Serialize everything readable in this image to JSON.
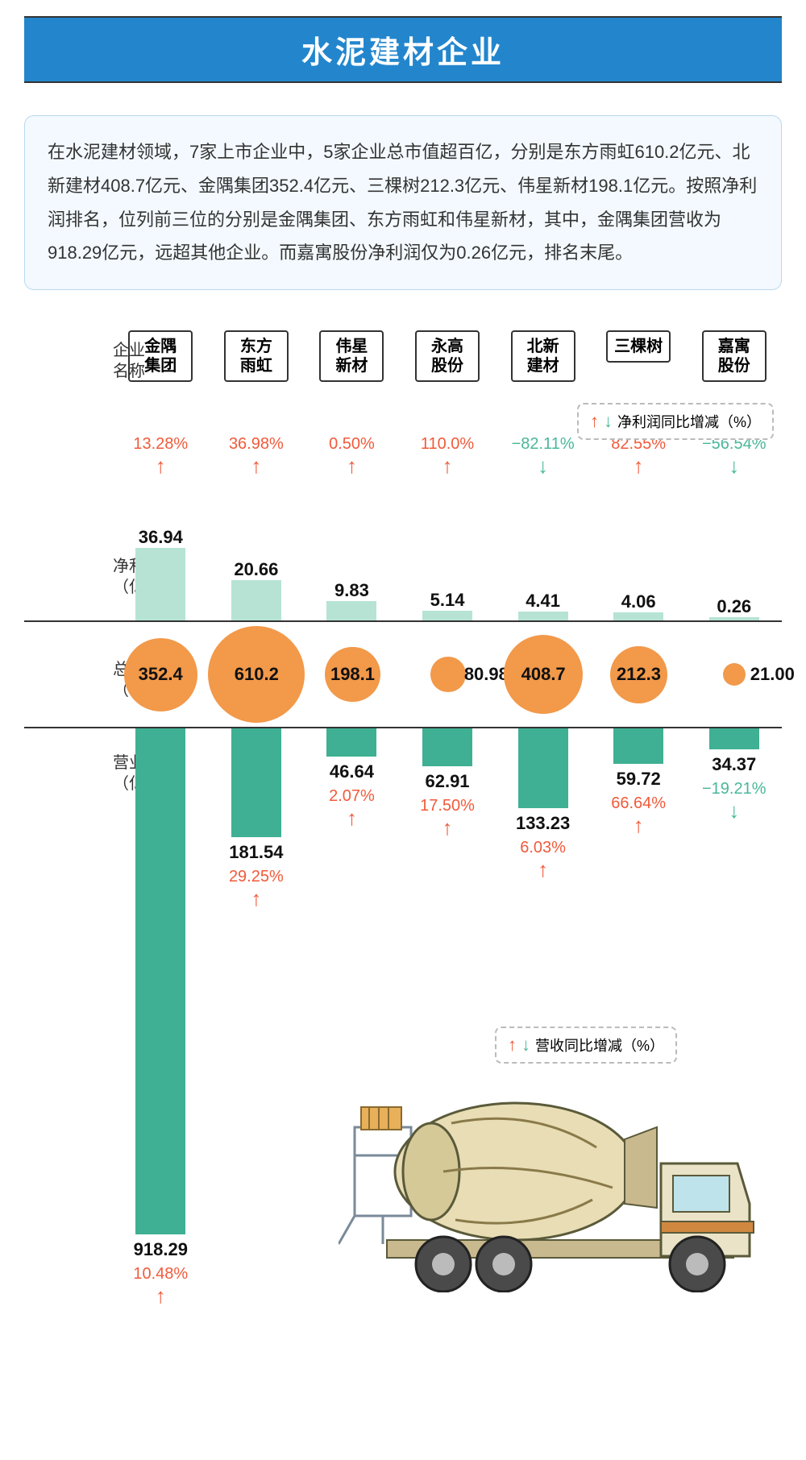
{
  "title": "水泥建材企业",
  "intro": "在水泥建材领域，7家上市企业中，5家企业总市值超百亿，分别是东方雨虹610.2亿元、北新建材408.7亿元、金隅集团352.4亿元、三棵树212.3亿元、伟星新材198.1亿元。按照净利润排名，位列前三位的分别是金隅集团、东方雨虹和伟星新材，其中，金隅集团营收为918.29亿元，远超其他企业。而嘉寓股份净利润仅为0.26亿元，排名末尾。",
  "labels": {
    "company": "企业\n名称",
    "profit": "净利润\n（亿元）",
    "market": "总市值\n（亿元）",
    "revenue": "营业收入\n（亿元）",
    "legend_profit": "净利润同比增减（%）",
    "legend_revenue": "营收同比增减（%）"
  },
  "colors": {
    "title_bg": "#2386cd",
    "intro_bg": "#f3f9fe",
    "intro_border": "#b9d9ef",
    "circle": "#f2994a",
    "profit_bar": "#b6e3d4",
    "revenue_bar": "#3fb093",
    "up": "#f05a3a",
    "down": "#49b79a"
  },
  "chart": {
    "profit_bar_max_h": 90,
    "profit_max_val": 36.94,
    "revenue_bar_max_h": 680,
    "revenue_max_val": 918.29,
    "circle_max_d": 120,
    "circle_max_val": 610.2,
    "circle_min_d": 28
  },
  "companies": [
    {
      "name": "金隅\n集团",
      "profit": 36.94,
      "profit_change": 13.28,
      "profit_up": true,
      "market": 352.4,
      "revenue": 918.29,
      "revenue_change": 10.48,
      "revenue_up": true
    },
    {
      "name": "东方\n雨虹",
      "profit": 20.66,
      "profit_change": 36.98,
      "profit_up": true,
      "market": 610.2,
      "revenue": 181.54,
      "revenue_change": 29.25,
      "revenue_up": true
    },
    {
      "name": "伟星\n新材",
      "profit": 9.83,
      "profit_change": 0.5,
      "profit_up": true,
      "market": 198.1,
      "revenue": 46.64,
      "revenue_change": 2.07,
      "revenue_up": true
    },
    {
      "name": "永高\n股份",
      "profit": 5.14,
      "profit_change": 110.0,
      "profit_up": true,
      "market": 80.98,
      "revenue": 62.91,
      "revenue_change": 17.5,
      "revenue_up": true
    },
    {
      "name": "北新\n建材",
      "profit": 4.41,
      "profit_change": -82.11,
      "profit_up": false,
      "market": 408.7,
      "revenue": 133.23,
      "revenue_change": 6.03,
      "revenue_up": true
    },
    {
      "name": "三棵树",
      "profit": 4.06,
      "profit_change": 82.55,
      "profit_up": true,
      "market": 212.3,
      "revenue": 59.72,
      "revenue_change": 66.64,
      "revenue_up": true
    },
    {
      "name": "嘉寓\n股份",
      "profit": 0.26,
      "profit_change": -56.54,
      "profit_up": false,
      "market": 21.0,
      "revenue": 34.37,
      "revenue_change": -19.21,
      "revenue_up": false
    }
  ]
}
